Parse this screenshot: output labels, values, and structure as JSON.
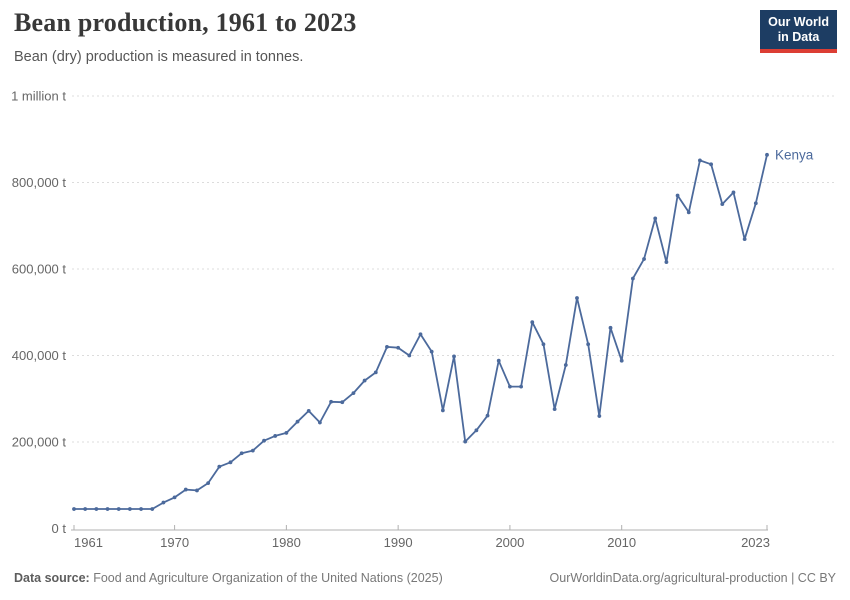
{
  "header": {
    "title": "Bean production, 1961 to 2023",
    "subtitle": "Bean (dry) production is measured in tonnes.",
    "logo": {
      "line1": "Our World",
      "line2": "in Data"
    }
  },
  "colors": {
    "series_blue": "#4c6a9c",
    "logo_background": "#1d3d63",
    "logo_accent_red": "#dc3e34",
    "gridline": "#dcdcdc",
    "axis": "#b0b0b0",
    "tick_label": "#666666"
  },
  "chart_data": {
    "type": "line",
    "title": "Bean production, 1961 to 2023",
    "subtitle": "Bean (dry) production is measured in tonnes.",
    "unit": "tonnes",
    "grid": "horizontal dashed",
    "legend_position": "end-of-line label",
    "xlim": [
      1961,
      2023
    ],
    "ylim": [
      0,
      1000000
    ],
    "x_ticks": [
      1961,
      1970,
      1980,
      1990,
      2000,
      2010,
      2023
    ],
    "y_ticks": [
      {
        "value": 1000000,
        "label": "1 million t"
      },
      {
        "value": 800000,
        "label": "800,000 t"
      },
      {
        "value": 600000,
        "label": "600,000 t"
      },
      {
        "value": 400000,
        "label": "400,000 t"
      },
      {
        "value": 200000,
        "label": "200,000 t"
      },
      {
        "value": 0,
        "label": "0 t"
      }
    ],
    "series": [
      {
        "name": "Kenya",
        "color": "#4c6a9c",
        "x": [
          1961,
          1962,
          1963,
          1964,
          1965,
          1966,
          1967,
          1968,
          1969,
          1970,
          1971,
          1972,
          1973,
          1974,
          1975,
          1976,
          1977,
          1978,
          1979,
          1980,
          1981,
          1982,
          1983,
          1984,
          1985,
          1986,
          1987,
          1988,
          1989,
          1990,
          1991,
          1992,
          1993,
          1994,
          1995,
          1996,
          1997,
          1998,
          1999,
          2000,
          2001,
          2002,
          2003,
          2004,
          2005,
          2006,
          2007,
          2008,
          2009,
          2010,
          2011,
          2012,
          2013,
          2014,
          2015,
          2016,
          2017,
          2018,
          2019,
          2020,
          2021,
          2022,
          2023
        ],
        "values": [
          45000,
          45000,
          45000,
          45000,
          45000,
          45000,
          45000,
          45000,
          60000,
          72000,
          90000,
          88000,
          105000,
          143000,
          153000,
          174000,
          180000,
          203000,
          214000,
          221000,
          247000,
          272000,
          245000,
          293000,
          292000,
          313000,
          342000,
          361000,
          420000,
          418000,
          400000,
          449000,
          409000,
          273000,
          398000,
          201000,
          227000,
          261000,
          388000,
          328000,
          328000,
          477000,
          426000,
          276000,
          378000,
          533000,
          426000,
          260000,
          464000,
          388000,
          578000,
          623000,
          717000,
          616000,
          770000,
          731000,
          851000,
          842000,
          750000,
          777000,
          669000,
          752000,
          864000
        ]
      }
    ]
  },
  "footer": {
    "source_label": "Data source:",
    "source_text": "Food and Agriculture Organization of the United Nations (2025)",
    "link_text": "OurWorldinData.org/agricultural-production | CC BY"
  }
}
